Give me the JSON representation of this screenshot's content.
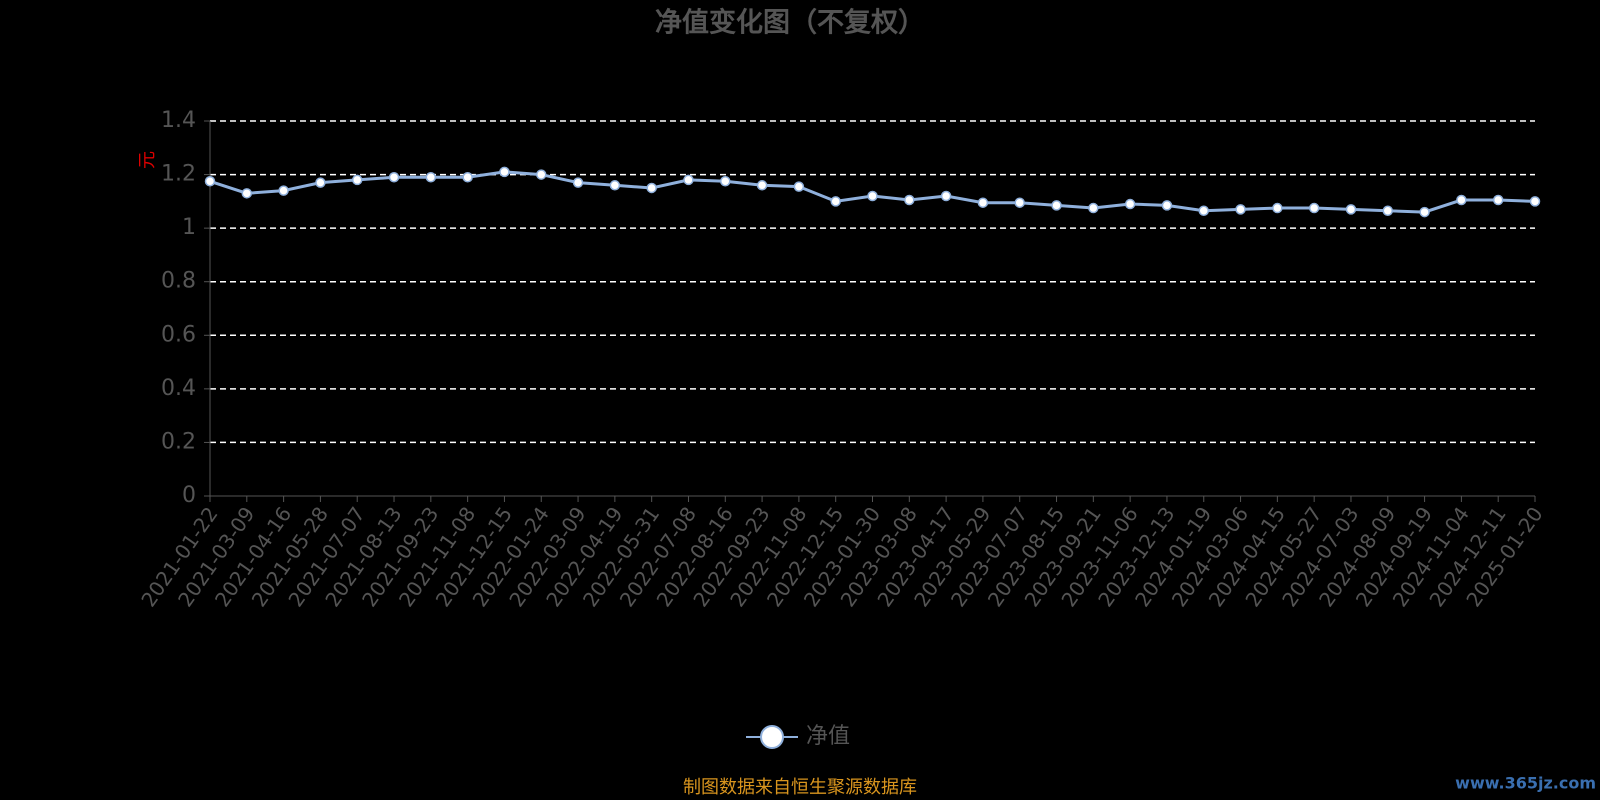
{
  "chart_data": {
    "type": "line",
    "title": "净值变化图（不复权）",
    "y_label": "元",
    "categories": [
      "2021-01-22",
      "2021-03-09",
      "2021-04-16",
      "2021-05-28",
      "2021-07-07",
      "2021-08-13",
      "2021-09-23",
      "2021-11-08",
      "2021-12-15",
      "2022-01-24",
      "2022-03-09",
      "2022-04-19",
      "2022-05-31",
      "2022-07-08",
      "2022-08-16",
      "2022-09-23",
      "2022-11-08",
      "2022-12-15",
      "2023-01-30",
      "2023-03-08",
      "2023-04-17",
      "2023-05-29",
      "2023-07-07",
      "2023-08-15",
      "2023-09-21",
      "2023-11-06",
      "2023-12-13",
      "2024-01-19",
      "2024-03-06",
      "2024-04-15",
      "2024-05-27",
      "2024-07-03",
      "2024-08-09",
      "2024-09-19",
      "2024-11-04",
      "2024-12-11",
      "2025-01-20"
    ],
    "series": [
      {
        "name": "净值",
        "color": "#8fb0dc",
        "values": [
          1.175,
          1.13,
          1.14,
          1.17,
          1.18,
          1.19,
          1.19,
          1.19,
          1.21,
          1.2,
          1.17,
          1.16,
          1.15,
          1.18,
          1.175,
          1.16,
          1.155,
          1.1,
          1.12,
          1.105,
          1.12,
          1.095,
          1.095,
          1.085,
          1.075,
          1.09,
          1.085,
          1.065,
          1.07,
          1.075,
          1.075,
          1.07,
          1.065,
          1.06,
          1.105,
          1.105,
          1.1
        ]
      }
    ],
    "ylim": [
      0,
      1.4
    ],
    "yticks": [
      0,
      0.2,
      0.4,
      0.6,
      0.8,
      1,
      1.2,
      1.4
    ],
    "grid": true,
    "footer": "制图数据来自恒生聚源数据库",
    "watermark": "www.365jz.com"
  }
}
